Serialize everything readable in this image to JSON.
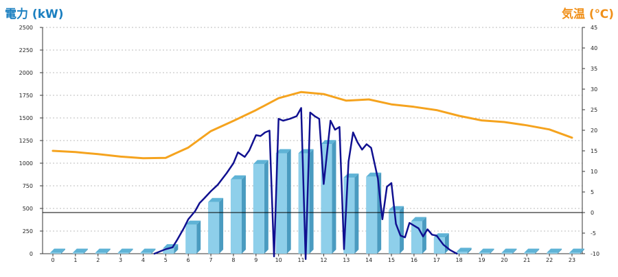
{
  "chart_data": {
    "type": "bar",
    "title": "",
    "y_left_label": "電力 (kW)",
    "y_right_label": "気温 (℃)",
    "xlabel": "",
    "x_categories": [
      "0",
      "1",
      "2",
      "3",
      "4",
      "5",
      "6",
      "7",
      "8",
      "9",
      "10",
      "11",
      "12",
      "13",
      "14",
      "15",
      "16",
      "17",
      "18",
      "19",
      "20",
      "21",
      "22",
      "23"
    ],
    "y_left_ticks": [
      "0",
      "250",
      "500",
      "750",
      "1000",
      "1250",
      "1500",
      "1750",
      "2000",
      "2250",
      "2500"
    ],
    "y_right_ticks": [
      "-10",
      "-5",
      "0",
      "5",
      "10",
      "15",
      "20",
      "25",
      "30",
      "35",
      "40",
      "45"
    ],
    "y_left_range": [
      0,
      2500
    ],
    "y_right_range": [
      -10,
      45
    ],
    "grid": true,
    "series": [
      {
        "kind": "bar",
        "axis": "left",
        "color": "#8ecfea",
        "values": [
          10,
          10,
          10,
          10,
          10,
          60,
          320,
          570,
          820,
          990,
          1110,
          1110,
          1210,
          840,
          850,
          480,
          360,
          180,
          20,
          10,
          10,
          10,
          10,
          10
        ]
      },
      {
        "kind": "line",
        "axis": "left",
        "color": "#101090",
        "points": [
          [
            4.5,
            0
          ],
          [
            4.8,
            30
          ],
          [
            5.0,
            50
          ],
          [
            5.3,
            70
          ],
          [
            5.5,
            150
          ],
          [
            5.8,
            280
          ],
          [
            6.0,
            380
          ],
          [
            6.3,
            470
          ],
          [
            6.5,
            560
          ],
          [
            6.7,
            610
          ],
          [
            7.0,
            690
          ],
          [
            7.3,
            760
          ],
          [
            7.7,
            890
          ],
          [
            8.0,
            1000
          ],
          [
            8.2,
            1120
          ],
          [
            8.5,
            1070
          ],
          [
            8.7,
            1140
          ],
          [
            9.0,
            1310
          ],
          [
            9.2,
            1300
          ],
          [
            9.4,
            1340
          ],
          [
            9.6,
            1360
          ],
          [
            9.8,
            -30
          ],
          [
            10.0,
            1490
          ],
          [
            10.2,
            1470
          ],
          [
            10.5,
            1490
          ],
          [
            10.8,
            1520
          ],
          [
            11.0,
            1610
          ],
          [
            11.2,
            -60
          ],
          [
            11.4,
            1560
          ],
          [
            11.6,
            1520
          ],
          [
            11.8,
            1490
          ],
          [
            12.0,
            770
          ],
          [
            12.3,
            1470
          ],
          [
            12.5,
            1370
          ],
          [
            12.7,
            1400
          ],
          [
            12.9,
            50
          ],
          [
            13.1,
            1020
          ],
          [
            13.3,
            1340
          ],
          [
            13.5,
            1230
          ],
          [
            13.7,
            1150
          ],
          [
            13.9,
            1210
          ],
          [
            14.1,
            1170
          ],
          [
            14.4,
            830
          ],
          [
            14.6,
            380
          ],
          [
            14.8,
            740
          ],
          [
            15.0,
            780
          ],
          [
            15.2,
            330
          ],
          [
            15.4,
            200
          ],
          [
            15.6,
            180
          ],
          [
            15.8,
            340
          ],
          [
            16.0,
            310
          ],
          [
            16.2,
            280
          ],
          [
            16.4,
            190
          ],
          [
            16.6,
            270
          ],
          [
            16.8,
            210
          ],
          [
            17.0,
            200
          ],
          [
            17.3,
            100
          ],
          [
            17.6,
            40
          ],
          [
            17.9,
            0
          ]
        ]
      },
      {
        "kind": "line",
        "axis": "right",
        "color": "#f5a31e",
        "points": [
          [
            0,
            15.0
          ],
          [
            1,
            14.7
          ],
          [
            2,
            14.2
          ],
          [
            3,
            13.6
          ],
          [
            4,
            13.2
          ],
          [
            5,
            13.3
          ],
          [
            6,
            15.8
          ],
          [
            7,
            19.8
          ],
          [
            8,
            22.3
          ],
          [
            9,
            24.9
          ],
          [
            10,
            27.8
          ],
          [
            11,
            29.3
          ],
          [
            12,
            28.8
          ],
          [
            13,
            27.2
          ],
          [
            14,
            27.5
          ],
          [
            15,
            26.3
          ],
          [
            16,
            25.7
          ],
          [
            17,
            24.9
          ],
          [
            18,
            23.5
          ],
          [
            19,
            22.4
          ],
          [
            20,
            22.0
          ],
          [
            21,
            21.2
          ],
          [
            22,
            20.2
          ],
          [
            23,
            18.2
          ]
        ]
      }
    ],
    "reference_line": {
      "axis": "right",
      "value": 0,
      "color": "#000000"
    }
  }
}
